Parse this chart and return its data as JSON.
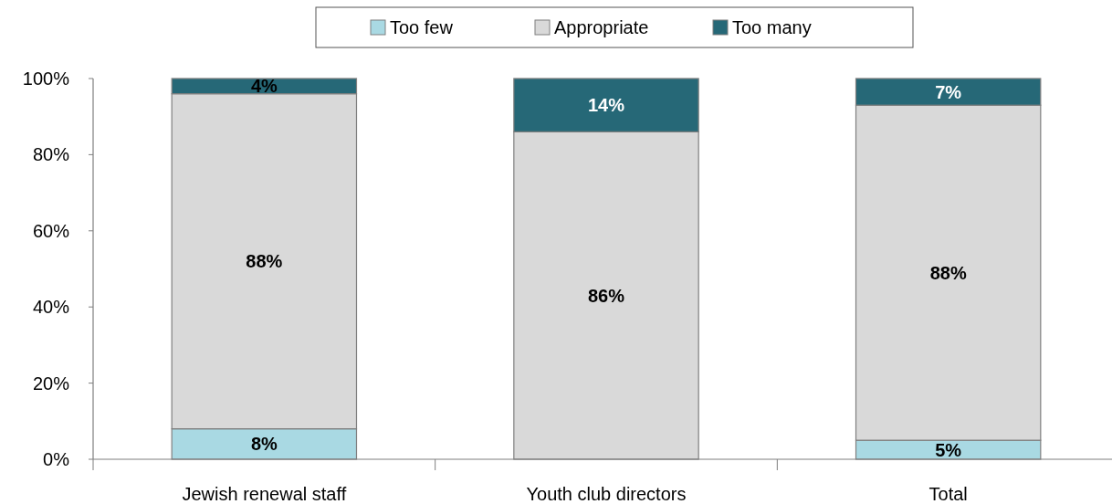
{
  "chart_data": {
    "type": "bar",
    "stacked": true,
    "legend": "top",
    "grid": false,
    "categories": [
      "Jewish renewal staff",
      "Youth club directors",
      "Total"
    ],
    "ylim": [
      0,
      100
    ],
    "yticks": [
      {
        "value": 0,
        "label": "0%"
      },
      {
        "value": 20,
        "label": "20%"
      },
      {
        "value": 40,
        "label": "40%"
      },
      {
        "value": 60,
        "label": "60%"
      },
      {
        "value": 80,
        "label": "80%"
      },
      {
        "value": 100,
        "label": "100%"
      }
    ],
    "series": [
      {
        "name": "Too few",
        "color": "#a9d9e3",
        "values": [
          8,
          0,
          5
        ],
        "value_labels": [
          "8%",
          null,
          "5%"
        ]
      },
      {
        "name": "Appropriate",
        "color": "#d9d9d9",
        "values": [
          88,
          86,
          88
        ],
        "value_labels": [
          "88%",
          "86%",
          "88%"
        ]
      },
      {
        "name": "Too many",
        "color": "#266877",
        "values": [
          4,
          14,
          7
        ],
        "value_labels": [
          "4%",
          "14%",
          "7%"
        ]
      }
    ]
  }
}
